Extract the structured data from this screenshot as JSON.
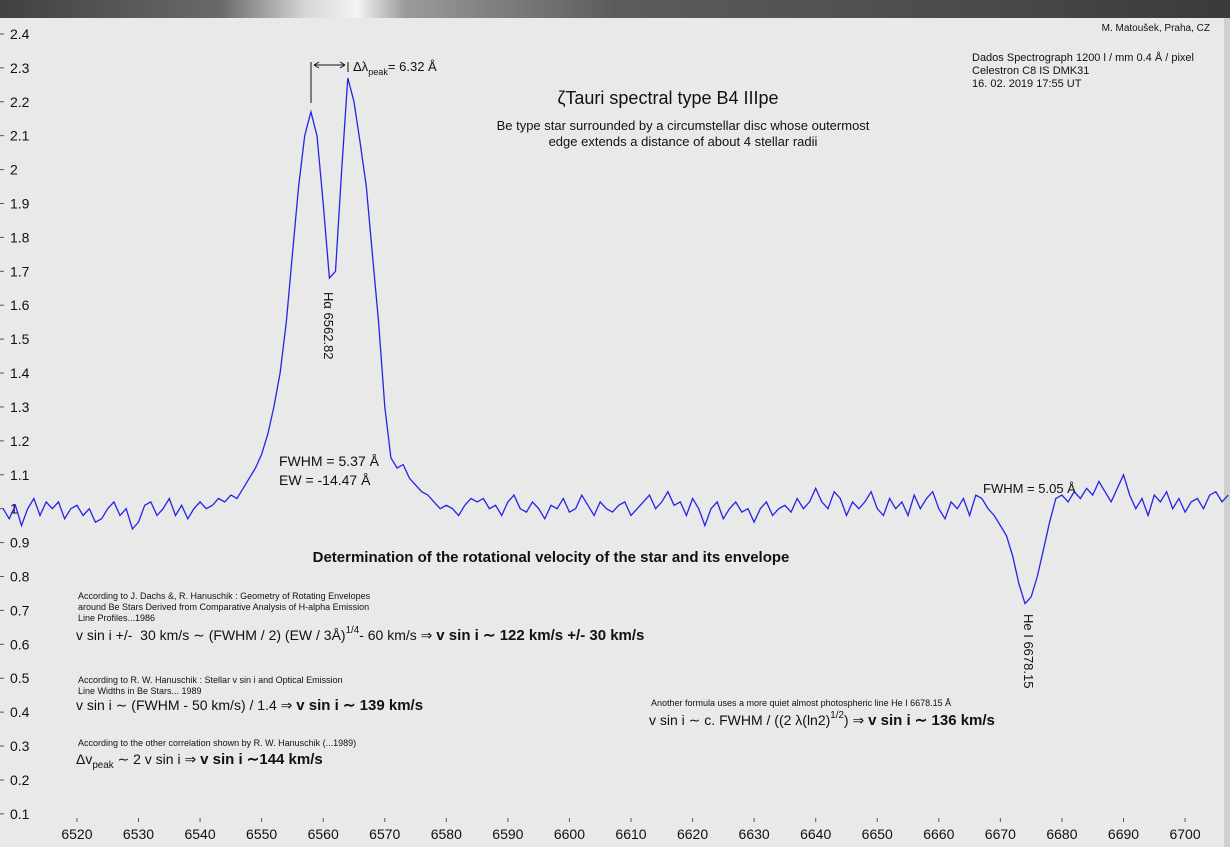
{
  "chart_data": {
    "type": "line",
    "title": "ζTauri  spectral type B4 IIIpe",
    "subtitle": [
      "Be type star surrounded by a circumstellar disc whose outermost",
      "edge extends a distance of about 4 stellar radii"
    ],
    "credit": "M. Matoušek,  Praha, CZ",
    "instrument": [
      "Dados Spectrograph 1200 l / mm 0.4 Å / pixel",
      "Celestron C8    IS DMK31",
      "16. 02. 2019  17:55 UT"
    ],
    "color": "#2424e8",
    "xlim": [
      6507.5,
      6707.3
    ],
    "ylim": [
      0.076,
      2.447
    ],
    "xticks": [
      6520,
      6530,
      6540,
      6550,
      6560,
      6570,
      6580,
      6590,
      6600,
      6610,
      6620,
      6630,
      6640,
      6650,
      6660,
      6670,
      6680,
      6690,
      6700
    ],
    "yticks": [
      0.1,
      0.2,
      0.3,
      0.4,
      0.5,
      0.6,
      0.7,
      0.8,
      0.9,
      1,
      1.1,
      1.2,
      1.3,
      1.4,
      1.5,
      1.6,
      1.7,
      1.8,
      1.9,
      2,
      2.1,
      2.2,
      2.3,
      2.4
    ],
    "x": [
      6508,
      6509,
      6510,
      6511,
      6512,
      6513,
      6514,
      6515,
      6516,
      6517,
      6518,
      6519,
      6520,
      6521,
      6522,
      6523,
      6524,
      6525,
      6526,
      6527,
      6528,
      6529,
      6530,
      6531,
      6532,
      6533,
      6534,
      6535,
      6536,
      6537,
      6538,
      6539,
      6540,
      6541,
      6542,
      6543,
      6544,
      6545,
      6546,
      6547,
      6548,
      6549,
      6550,
      6551,
      6552,
      6553,
      6554,
      6555,
      6556,
      6557,
      6558,
      6559,
      6560,
      6561,
      6562,
      6563,
      6564,
      6565,
      6566,
      6567,
      6568,
      6569,
      6570,
      6571,
      6572,
      6573,
      6574,
      6575,
      6576,
      6577,
      6578,
      6579,
      6580,
      6581,
      6582,
      6583,
      6584,
      6585,
      6586,
      6587,
      6588,
      6589,
      6590,
      6591,
      6592,
      6593,
      6594,
      6595,
      6596,
      6597,
      6598,
      6599,
      6600,
      6601,
      6602,
      6603,
      6604,
      6605,
      6606,
      6607,
      6608,
      6609,
      6610,
      6611,
      6612,
      6613,
      6614,
      6615,
      6616,
      6617,
      6618,
      6619,
      6620,
      6621,
      6622,
      6623,
      6624,
      6625,
      6626,
      6627,
      6628,
      6629,
      6630,
      6631,
      6632,
      6633,
      6634,
      6635,
      6636,
      6637,
      6638,
      6639,
      6640,
      6641,
      6642,
      6643,
      6644,
      6645,
      6646,
      6647,
      6648,
      6649,
      6650,
      6651,
      6652,
      6653,
      6654,
      6655,
      6656,
      6657,
      6658,
      6659,
      6660,
      6661,
      6662,
      6663,
      6664,
      6665,
      6666,
      6667,
      6668,
      6669,
      6670,
      6671,
      6672,
      6673,
      6674,
      6675,
      6676,
      6677,
      6678,
      6679,
      6680,
      6681,
      6682,
      6683,
      6684,
      6685,
      6686,
      6687,
      6688,
      6689,
      6690,
      6691,
      6692,
      6693,
      6694,
      6695,
      6696,
      6697,
      6698,
      6699,
      6700,
      6701,
      6702,
      6703,
      6704,
      6705,
      6706,
      6707
    ],
    "values": [
      1.0,
      0.97,
      1.01,
      0.95,
      1.0,
      1.03,
      0.98,
      1.02,
      1.0,
      1.02,
      0.97,
      1.0,
      1.01,
      0.98,
      1.0,
      0.96,
      0.97,
      1.0,
      1.02,
      0.98,
      1.0,
      0.94,
      0.96,
      1.01,
      1.02,
      0.98,
      1.0,
      1.03,
      0.98,
      1.01,
      0.97,
      1.0,
      1.02,
      1.0,
      1.01,
      1.03,
      1.02,
      1.04,
      1.03,
      1.06,
      1.09,
      1.12,
      1.16,
      1.22,
      1.3,
      1.4,
      1.55,
      1.75,
      1.95,
      2.1,
      2.17,
      2.1,
      1.9,
      1.68,
      1.7,
      2.0,
      2.27,
      2.2,
      2.08,
      1.95,
      1.75,
      1.55,
      1.3,
      1.15,
      1.12,
      1.13,
      1.09,
      1.07,
      1.05,
      1.04,
      1.02,
      1.0,
      1.01,
      1.0,
      0.98,
      1.01,
      1.03,
      1.02,
      1.03,
      1.0,
      1.01,
      0.98,
      1.02,
      1.04,
      1.0,
      0.99,
      1.02,
      1.0,
      0.97,
      1.01,
      1.0,
      1.03,
      0.99,
      1.0,
      1.04,
      1.01,
      0.98,
      1.02,
      1.0,
      0.99,
      1.01,
      1.02,
      0.98,
      1.0,
      1.02,
      1.04,
      1.0,
      1.02,
      1.05,
      1.01,
      1.02,
      0.98,
      1.03,
      1.0,
      0.95,
      1.0,
      1.02,
      0.97,
      1.0,
      1.02,
      0.99,
      1.0,
      0.96,
      1.0,
      1.02,
      0.98,
      1.0,
      1.01,
      0.99,
      1.03,
      1.0,
      1.02,
      1.06,
      1.02,
      1.0,
      1.05,
      1.03,
      0.98,
      1.02,
      1.0,
      1.02,
      1.05,
      1.0,
      0.98,
      1.03,
      1.0,
      1.02,
      0.98,
      1.04,
      1.0,
      1.03,
      1.05,
      1.0,
      0.97,
      1.02,
      1.0,
      1.03,
      0.98,
      1.04,
      1.03,
      1.0,
      0.98,
      0.95,
      0.92,
      0.86,
      0.78,
      0.72,
      0.74,
      0.8,
      0.88,
      0.96,
      1.03,
      1.04,
      1.02,
      1.05,
      1.03,
      1.06,
      1.04,
      1.08,
      1.05,
      1.02,
      1.06,
      1.1,
      1.04,
      1.0,
      1.03,
      0.98,
      1.04,
      1.02,
      1.05,
      1.0,
      1.03,
      0.99,
      1.02,
      1.03,
      1.0,
      1.04,
      1.05,
      1.02,
      1.04
    ],
    "annotations": {
      "peak_separation": [
        {
          "text": "Δλ",
          "style": "normal"
        },
        {
          "text": "peak",
          "style": "sub"
        },
        {
          "text": "= 6.32 Å",
          "style": "normal"
        }
      ],
      "halpha_label": "Hα 6562.82",
      "halpha_fwhm": "FWHM = 5.37 Å",
      "halpha_ew": "EW = -14.47 Å",
      "hei_fwhm": "FWHM = 5.05 Å",
      "hei_label": "He I 6678.15",
      "section_title": "Determination of the rotational velocity of the star and its envelope",
      "methods": [
        {
          "source": [
            "According to J. Dachs &, R. Hanuschik : Geometry of Rotating Envelopes",
            "around Be Stars Derived from Comparative Analysis of H-alpha Emission",
            "Line Profiles...1986"
          ],
          "formula": [
            {
              "text": "v sin i +/-  30 km/s ∼ (FWHM / 2) (EW / 3Å)",
              "style": "normal"
            },
            {
              "text": "1/4",
              "style": "sup"
            },
            {
              "text": "- 60 km/s ⇒ ",
              "style": "normal"
            },
            {
              "text": "v sin i ∼ 122 km/s +/- 30 km/s",
              "style": "bold"
            }
          ]
        },
        {
          "source": [
            "According to  R. W. Hanuschik  : Stellar v sin i and Optical Emission",
            "Line Widths in Be Stars... 1989"
          ],
          "formula": [
            {
              "text": "v sin i ∼ (FWHM - 50 km/s) / 1.4 ⇒ ",
              "style": "normal"
            },
            {
              "text": "v sin i ∼ 139 km/s",
              "style": "bold"
            }
          ]
        },
        {
          "source": [
            "According to the other correlation shown by R. W. Hanuschik (...1989)"
          ],
          "formula": [
            {
              "text": "Δv",
              "style": "normal"
            },
            {
              "text": "peak",
              "style": "sub"
            },
            {
              "text": " ∼ 2 v sin i ⇒ ",
              "style": "normal"
            },
            {
              "text": "v sin i ∼144 km/s",
              "style": "bold"
            }
          ]
        },
        {
          "source": [
            "Another formula uses a more quiet almost photospheric line He I 6678.15 Å"
          ],
          "formula": [
            {
              "text": "v sin i ∼ c. FWHM / ((2 λ(ln2)",
              "style": "normal"
            },
            {
              "text": "1/2",
              "style": "sup"
            },
            {
              "text": ") ⇒ ",
              "style": "normal"
            },
            {
              "text": "v sin i ∼ 136 km/s",
              "style": "bold"
            }
          ]
        }
      ]
    }
  }
}
